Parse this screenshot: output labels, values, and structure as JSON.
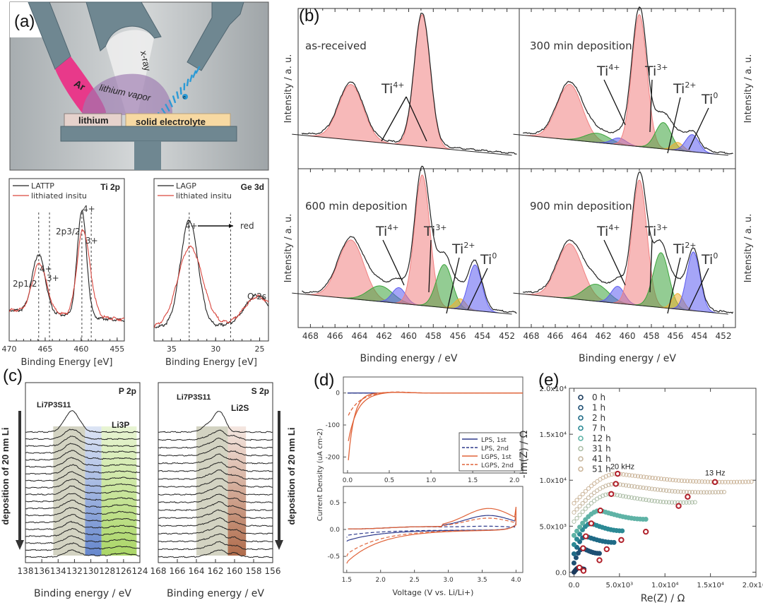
{
  "figure": {
    "panel_labels": [
      "(a)",
      "(b)",
      "(c)",
      "(d)",
      "(e)"
    ]
  },
  "schematic": {
    "labels": {
      "ar": "Ar",
      "xray": "x-ray",
      "vapor": "lithium vapor",
      "electron": "e",
      "lithium": "lithium",
      "electrolyte": "solid electrolyte"
    },
    "colors": {
      "chamber": "#b9bec1",
      "gun": "#6f8791",
      "ar_beam": "#e8398a",
      "vapor": "#9c7ab1",
      "lithium_block": "#e6d2cc",
      "electrolyte_block": "#f7d9a2",
      "electron": "#2a9ad6"
    }
  },
  "chart_data": [
    {
      "id": "a-ti2p",
      "type": "line",
      "title": "Ti 2p",
      "xlabel": "Binding Energy [eV]",
      "ylabel": "",
      "xlim": [
        470,
        454
      ],
      "xticks": [
        470,
        465,
        460,
        455
      ],
      "legend": {
        "placement": "top-left",
        "entries": [
          "LATTP",
          "lithiated insitu"
        ]
      },
      "series": [
        {
          "name": "LATTP",
          "color": "#222222",
          "peaks": [
            [
              465.9,
              0.55,
              0.9
            ],
            [
              459.9,
              1.0,
              0.65
            ]
          ],
          "baseline": [
            0.16,
            0.06
          ]
        },
        {
          "name": "lithiated insitu",
          "color": "#d9473f",
          "peaks": [
            [
              465.8,
              0.46,
              1.0
            ],
            [
              459.8,
              0.78,
              0.8
            ],
            [
              458.6,
              0.15,
              0.7
            ]
          ],
          "baseline": [
            0.16,
            0.07
          ]
        }
      ],
      "vlines": [
        465.9,
        464.4,
        459.9,
        458.6
      ],
      "annotations": [
        "2p1/2",
        "4+",
        "3+",
        "2p3/2",
        "4+",
        "3+"
      ]
    },
    {
      "id": "a-ge3d",
      "type": "line",
      "title": "Ge 3d",
      "xlabel": "Binding Energy [eV]",
      "xlim": [
        37,
        24
      ],
      "xticks": [
        35,
        30,
        25
      ],
      "legend": {
        "placement": "top-left",
        "entries": [
          "LAGP",
          "lithiated insitu"
        ]
      },
      "series": [
        {
          "name": "LAGP",
          "color": "#222222",
          "peaks": [
            [
              33.0,
              1.0,
              1.0
            ],
            [
              25.3,
              0.28,
              1.4
            ]
          ],
          "baseline": [
            0.0,
            0.02
          ]
        },
        {
          "name": "lithiated insitu",
          "color": "#d9473f",
          "peaks": [
            [
              32.9,
              0.74,
              1.4
            ],
            [
              25.2,
              0.25,
              1.5
            ]
          ],
          "baseline": [
            0.0,
            0.04
          ]
        }
      ],
      "vlines": [
        33.0,
        28.3
      ],
      "annotations": [
        "4+",
        "red",
        "O 2s"
      ]
    },
    {
      "id": "b-fits",
      "type": "area",
      "xlabel": "Binding energy / eV",
      "ylabel": "Intensity / a. u.",
      "xlim": [
        469,
        451
      ],
      "xticks": [
        468,
        466,
        464,
        462,
        460,
        458,
        456,
        454,
        452
      ],
      "component_colors": {
        "Ti4+": "#f08080",
        "Ti3+": "#3aa33a",
        "Ti2+": "#f0b030",
        "Ti0": "#5b5bf0"
      },
      "subplots": [
        {
          "title": "as-received",
          "annotations": [
            "Ti4+"
          ],
          "components": [
            [
              "Ti4+",
              464.7,
              0.42,
              1.0
            ],
            [
              "Ti4+",
              458.9,
              1.0,
              0.65
            ]
          ]
        },
        {
          "title": "300 min deposition",
          "annotations": [
            "Ti4+",
            "Ti3+",
            "Ti2+",
            "Ti0"
          ],
          "components": [
            [
              "Ti4+",
              464.8,
              0.42,
              1.05
            ],
            [
              "Ti3+",
              462.5,
              0.07,
              1.0
            ],
            [
              "Ti0",
              460.7,
              0.05,
              0.6
            ],
            [
              "Ti4+",
              459.0,
              1.0,
              0.62
            ],
            [
              "Ti3+",
              457.0,
              0.2,
              0.65
            ],
            [
              "Ti2+",
              455.8,
              0.06,
              0.45
            ],
            [
              "Ti0",
              454.6,
              0.13,
              0.55
            ]
          ]
        },
        {
          "title": "600 min deposition",
          "annotations": [
            "Ti4+",
            "Ti3+",
            "Ti2+",
            "Ti0"
          ],
          "components": [
            [
              "Ti4+",
              464.7,
              0.45,
              1.05
            ],
            [
              "Ti3+",
              462.3,
              0.12,
              1.0
            ],
            [
              "Ti0",
              460.8,
              0.12,
              0.55
            ],
            [
              "Ti4+",
              458.9,
              1.0,
              0.62
            ],
            [
              "Ti3+",
              457.1,
              0.33,
              0.65
            ],
            [
              "Ti2+",
              455.8,
              0.08,
              0.45
            ],
            [
              "Ti0",
              454.6,
              0.35,
              0.55
            ]
          ]
        },
        {
          "title": "900 min deposition",
          "annotations": [
            "Ti4+",
            "Ti3+",
            "Ti2+",
            "Ti0"
          ],
          "components": [
            [
              "Ti4+",
              464.8,
              0.42,
              1.05
            ],
            [
              "Ti3+",
              462.6,
              0.13,
              1.0
            ],
            [
              "Ti0",
              460.8,
              0.13,
              0.55
            ],
            [
              "Ti4+",
              459.0,
              0.96,
              0.62
            ],
            [
              "Ti3+",
              457.2,
              0.42,
              0.65
            ],
            [
              "Ti2+",
              455.8,
              0.12,
              0.45
            ],
            [
              "Ti0",
              454.5,
              0.45,
              0.55
            ]
          ]
        }
      ]
    },
    {
      "id": "c-p2p",
      "type": "line",
      "title": "P 2p",
      "xlabel": "Binding energy / eV",
      "xlim": [
        138,
        124
      ],
      "xticks": [
        138,
        136,
        134,
        132,
        130,
        128,
        126,
        124
      ],
      "trace_count": 19,
      "side_label": "deposition of 20 nm Li",
      "bands": [
        {
          "label": "Li7P3S11",
          "range": [
            134.6,
            130.7
          ],
          "color": "#b6b59a"
        },
        {
          "range": [
            130.7,
            128.7
          ],
          "color": "#5e83c9"
        },
        {
          "label": "Li3P",
          "range": [
            128.7,
            124.4
          ],
          "color": "#a9d65d"
        }
      ]
    },
    {
      "id": "c-s2p",
      "type": "line",
      "title": "S 2p",
      "xlabel": "Binding energy / eV",
      "xlim": [
        168,
        156
      ],
      "xticks": [
        168,
        166,
        164,
        162,
        160,
        158,
        156
      ],
      "trace_count": 17,
      "side_label": "deposition of 20 nm Li",
      "bands": [
        {
          "label": "Li7P3S11",
          "range": [
            164.0,
            160.7
          ],
          "color": "#b6b59a"
        },
        {
          "label": "Li2S",
          "range": [
            160.7,
            158.8
          ],
          "color": "#b8663a"
        }
      ]
    },
    {
      "id": "d-cv",
      "type": "line",
      "ylabel": "Current Density (uA cm-2)",
      "xlabel": "Voltage (V vs. Li/Li+)",
      "top": {
        "xlim": [
          -0.05,
          2.1
        ],
        "ylim": [
          -250,
          50
        ],
        "xticks": [
          0.0,
          0.5,
          1.0,
          1.5,
          2.0
        ],
        "yticks": [
          0,
          -100,
          -200
        ]
      },
      "bottom": {
        "xlim": [
          1.45,
          4.1
        ],
        "ylim": [
          -0.8,
          0.8
        ],
        "xticks": [
          1.5,
          2.0,
          2.5,
          3.0,
          3.5,
          4.0
        ],
        "yticks": [
          0.5,
          0.0,
          -0.5
        ]
      },
      "legend": {
        "placement": "bottom-right",
        "entries": [
          {
            "name": "LPS, 1st",
            "color": "#2e3a8c",
            "dash": false
          },
          {
            "name": "LPS, 2nd",
            "color": "#2e3a8c",
            "dash": true
          },
          {
            "name": "LGPS, 1st",
            "color": "#e0643a",
            "dash": false
          },
          {
            "name": "LGPS, 2nd",
            "color": "#e0643a",
            "dash": true
          }
        ]
      }
    },
    {
      "id": "e-nyquist",
      "type": "scatter",
      "xlabel": "Re(Z) /  Ω",
      "ylabel": "-Im(Z) /  Ω",
      "xlim": [
        -500,
        20000
      ],
      "ylim": [
        -500,
        20000
      ],
      "xticks": [
        "0.0",
        "5.0x10³",
        "1.0x10⁴",
        "1.5x10⁴",
        "2.0x10⁴"
      ],
      "yticks": [
        "0.0",
        "5.0x10³",
        "1.0x10⁴",
        "1.5x10⁴",
        "2.0x10⁴"
      ],
      "xtick_values": [
        0,
        5000,
        10000,
        15000,
        20000
      ],
      "ytick_values": [
        0,
        5000,
        10000,
        15000,
        20000
      ],
      "annotations": [
        "20 kHz",
        "13 Hz"
      ],
      "marker_color": "#b0202a",
      "series": [
        {
          "name": "0 h",
          "color": "#1b3a5c",
          "offset": 0,
          "apex": [
            600,
            500
          ],
          "end": 1100,
          "mark": [
            [
              600,
              500
            ],
            [
              1050,
              150
            ]
          ]
        },
        {
          "name": "1 h",
          "color": "#1e4f73",
          "offset": 1000,
          "apex": [
            1000,
            2600
          ],
          "end": 2800,
          "mark": [
            [
              1000,
              2600
            ],
            [
              2800,
              1300
            ]
          ]
        },
        {
          "name": "2 h",
          "color": "#1f6a86",
          "offset": 2000,
          "apex": [
            1300,
            3900
          ],
          "end": 4400,
          "mark": [
            [
              1300,
              3900
            ],
            [
              3600,
              2500
            ]
          ]
        },
        {
          "name": "7 h",
          "color": "#2c8a95",
          "offset": 3000,
          "apex": [
            1900,
            5300
          ],
          "end": 5300,
          "mark": [
            [
              1900,
              5300
            ],
            [
              5200,
              3500
            ]
          ]
        },
        {
          "name": "12 h",
          "color": "#5fb3a6",
          "offset": 4000,
          "apex": [
            2900,
            6700
          ],
          "end": 7900,
          "mark": [
            [
              2900,
              6700
            ],
            [
              7900,
              4400
            ]
          ]
        },
        {
          "name": "31 h",
          "color": "#aebfa8",
          "offset": 5500,
          "apex": [
            4100,
            8500
          ],
          "end": 13300,
          "mark": [
            [
              4100,
              8500
            ],
            [
              11500,
              7200
            ]
          ]
        },
        {
          "name": "41 h",
          "color": "#c7b8a0",
          "offset": 6500,
          "apex": [
            4600,
            9600
          ],
          "end": 16500,
          "mark": [
            [
              4600,
              9600
            ],
            [
              12500,
              8200
            ]
          ]
        },
        {
          "name": "51 h",
          "color": "#cdb79c",
          "offset": 7500,
          "apex": [
            4800,
            10700
          ],
          "end": 19500,
          "mark": [
            [
              4800,
              10700
            ],
            [
              15500,
              9800
            ]
          ]
        }
      ]
    }
  ]
}
